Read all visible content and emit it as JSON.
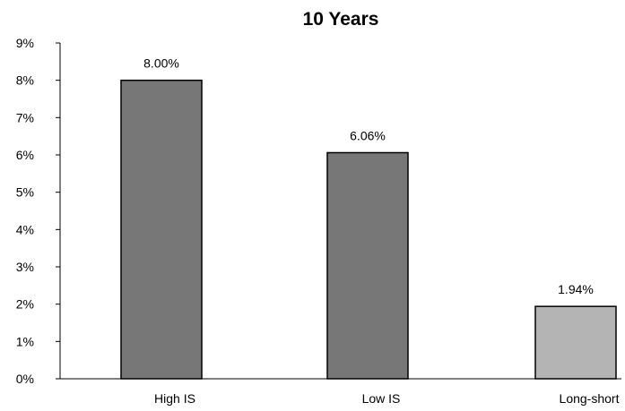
{
  "chart_data": {
    "type": "bar",
    "title": "10 Years",
    "xlabel": "",
    "ylabel": "",
    "categories": [
      "High IS",
      "Low IS",
      "Long-short"
    ],
    "values": [
      8.0,
      6.06,
      1.94
    ],
    "data_labels": [
      "8.00%",
      "6.06%",
      "1.94%"
    ],
    "bar_colors": [
      "#777777",
      "#777777",
      "#b4b4b4"
    ],
    "ylim": [
      0,
      9
    ],
    "y_ticks": [
      0,
      1,
      2,
      3,
      4,
      5,
      6,
      7,
      8,
      9
    ],
    "y_tick_labels": [
      "0%",
      "1%",
      "2%",
      "3%",
      "4%",
      "5%",
      "6%",
      "7%",
      "8%",
      "9%"
    ],
    "grid": false,
    "legend": "none"
  }
}
